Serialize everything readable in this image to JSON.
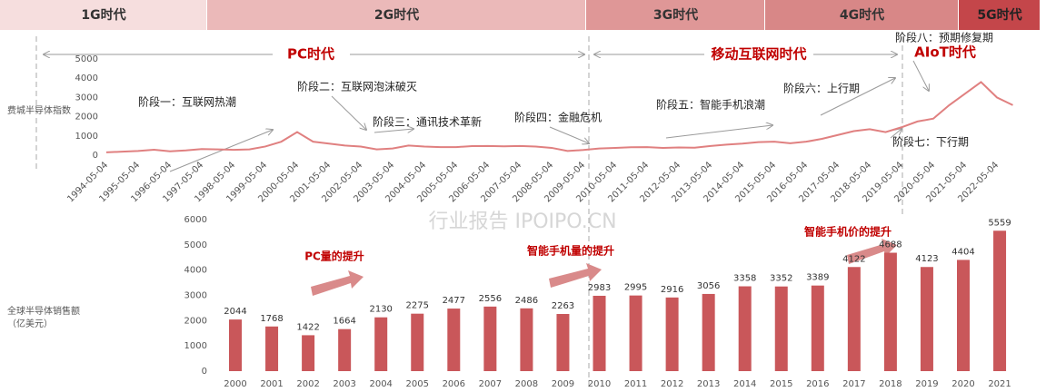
{
  "eras": [
    "1G时代",
    "2G时代",
    "3G时代",
    "4G时代",
    "5G时代"
  ],
  "watermark": "行业报告 IPOIPO.CN",
  "chart_data": [
    {
      "type": "line",
      "ylabel": "费城半导体指数",
      "categories": [
        "1994-05-04",
        null,
        "1995-05-04",
        null,
        "1996-05-04",
        null,
        "1997-05-04",
        null,
        "1998-05-04",
        null,
        "1999-05-04",
        null,
        "2000-05-04",
        null,
        "2001-05-04",
        null,
        "2002-05-04",
        null,
        "2003-05-04",
        null,
        "2004-05-04",
        null,
        "2005-05-04",
        null,
        "2006-05-04",
        null,
        "2007-05-04",
        null,
        "2008-05-04",
        null,
        "2009-05-04",
        null,
        "2010-05-04",
        null,
        "2011-05-04",
        null,
        "2012-05-04",
        null,
        "2013-05-04",
        null,
        "2014-05-04",
        null,
        "2015-05-04",
        null,
        "2016-05-04",
        null,
        "2017-05-04",
        null,
        "2018-05-04",
        null,
        "2019-05-04",
        null,
        "2020-05-04",
        null,
        "2021-05-04",
        null,
        "2022-05-04",
        null
      ],
      "series": [
        {
          "color": "#e08080",
          "values": [
            150,
            180,
            220,
            280,
            200,
            250,
            320,
            300,
            280,
            300,
            450,
            700,
            1200,
            700,
            600,
            500,
            450,
            300,
            350,
            500,
            450,
            420,
            420,
            470,
            480,
            460,
            480,
            450,
            380,
            220,
            270,
            350,
            380,
            410,
            420,
            380,
            400,
            390,
            480,
            550,
            600,
            680,
            700,
            620,
            700,
            850,
            1050,
            1250,
            1350,
            1200,
            1450,
            1750,
            1900,
            2600,
            3200,
            3800,
            3000,
            2600
          ]
        }
      ],
      "ylim": [
        0,
        5000
      ],
      "yticks": [
        0,
        1000,
        2000,
        3000,
        4000,
        5000
      ],
      "annotations": [
        "PC时代",
        "移动互联网时代",
        "AIoT时代",
        "阶段一：互联网热潮",
        "阶段二：互联网泡沫破灭",
        "阶段三：通讯技术革新",
        "阶段四：金融危机",
        "阶段五：智能手机浪潮",
        "阶段六：上行期",
        "阶段七：下行期",
        "阶段八：预期修复期"
      ]
    },
    {
      "type": "bar",
      "ylabel": [
        "全球半导体销售额",
        "（亿美元）"
      ],
      "categories": [
        "2000",
        "2001",
        "2002",
        "2003",
        "2004",
        "2005",
        "2006",
        "2007",
        "2008",
        "2009",
        "2010",
        "2011",
        "2012",
        "2013",
        "2014",
        "2015",
        "2016",
        "2017",
        "2018",
        "2019",
        "2020",
        "2021"
      ],
      "values": [
        2044,
        1768,
        1422,
        1664,
        2130,
        2275,
        2477,
        2556,
        2486,
        2263,
        2983,
        2995,
        2916,
        3056,
        3358,
        3352,
        3389,
        4122,
        4688,
        4123,
        4404,
        5559
      ],
      "color": "#c9575a",
      "ylim": [
        0,
        6000
      ],
      "yticks": [
        0,
        1000,
        2000,
        3000,
        4000,
        5000,
        6000
      ],
      "annotations": [
        "PC量的提升",
        "智能手机量的提升",
        "智能手机价的提升"
      ]
    }
  ]
}
